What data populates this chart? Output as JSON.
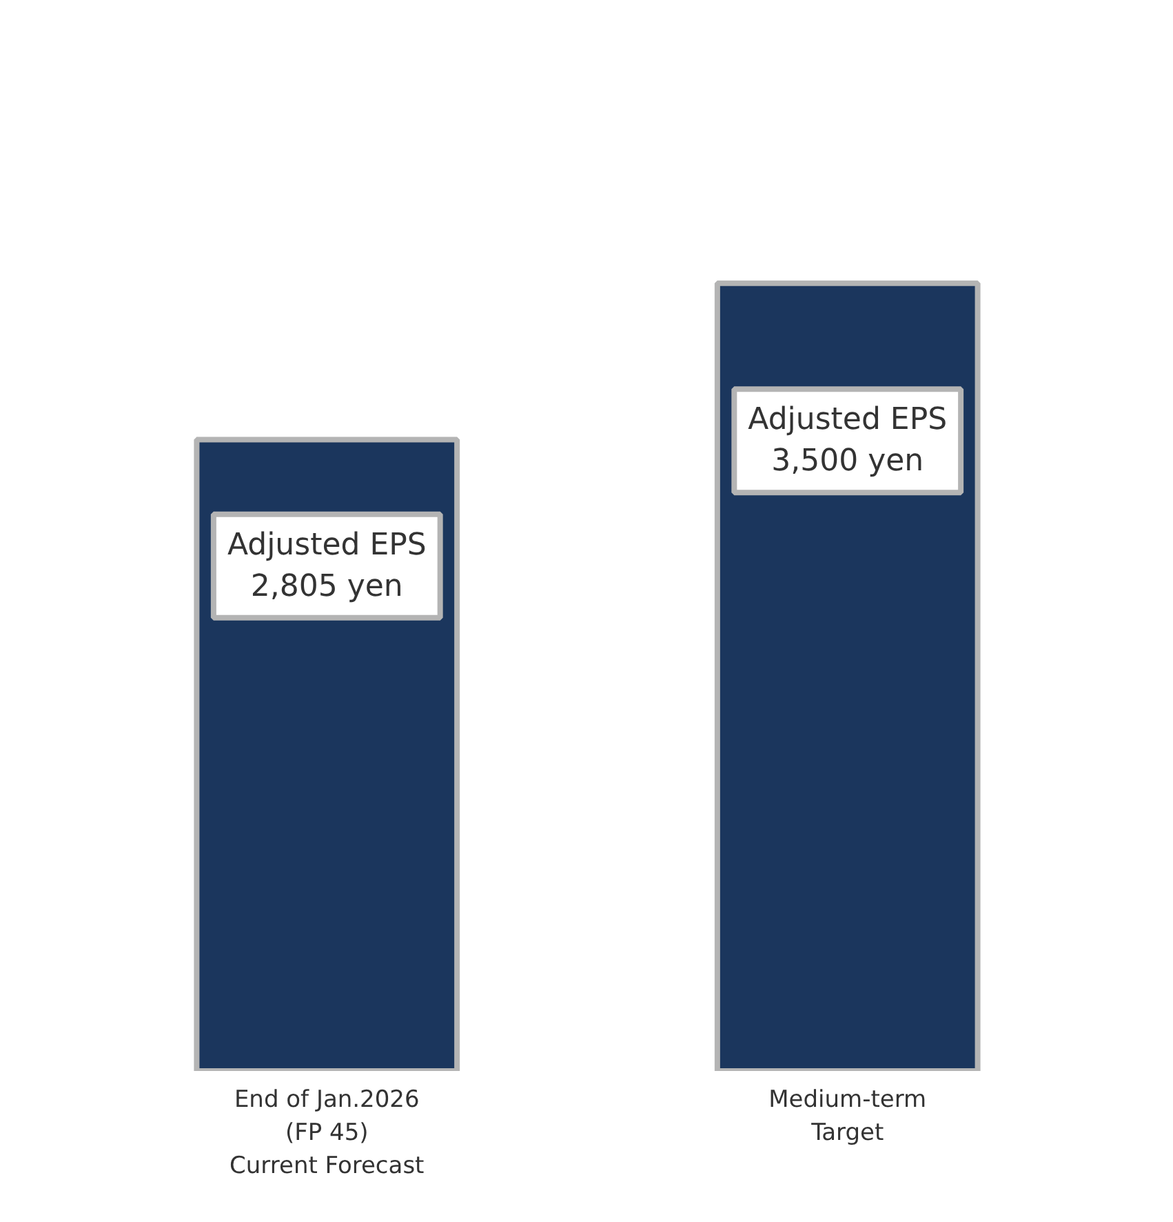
{
  "chart_data": {
    "type": "bar",
    "categories": [
      "End of Jan.2026\n(FP 45)\nCurrent Forecast",
      "Medium-term\nTarget"
    ],
    "values": [
      2805,
      3500
    ],
    "color": "#1b365d",
    "value_labels": [
      "Adjusted EPS\n2,805 yen",
      "Adjusted EPS\n3,500 yen"
    ],
    "grid": false
  }
}
